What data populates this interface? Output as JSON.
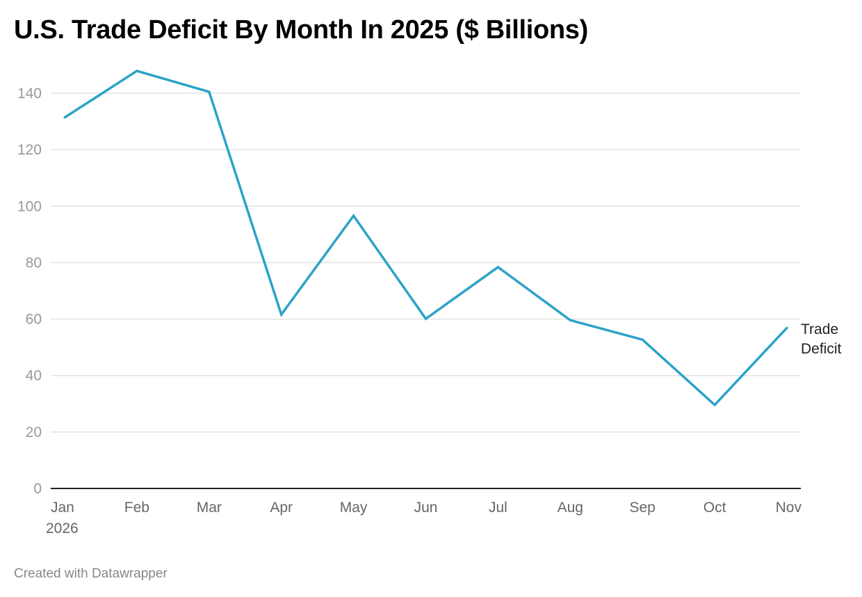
{
  "title": "U.S. Trade Deficit By Month In 2025 ($ Billions)",
  "footer": "Created with Datawrapper",
  "chart_data": {
    "type": "line",
    "title": "U.S. Trade Deficit By Month In 2025 ($ Billions)",
    "categories": [
      "Jan",
      "Feb",
      "Mar",
      "Apr",
      "May",
      "Jun",
      "Jul",
      "Aug",
      "Sep",
      "Oct",
      "Nov"
    ],
    "x_sublabel_first": "2026",
    "series": [
      {
        "name": "Trade Deficit",
        "label_lines": [
          "Trade",
          "Deficit"
        ],
        "color": "#2ba3c6",
        "values": [
          131.4,
          147.9,
          140.5,
          61.6,
          96.6,
          60.1,
          78.4,
          59.6,
          52.7,
          29.6,
          56.9
        ]
      }
    ],
    "ylim": [
      0,
      140
    ],
    "yticks": [
      0,
      20,
      40,
      60,
      80,
      100,
      120,
      140
    ],
    "grid": true,
    "legend": "inline-end-label"
  }
}
